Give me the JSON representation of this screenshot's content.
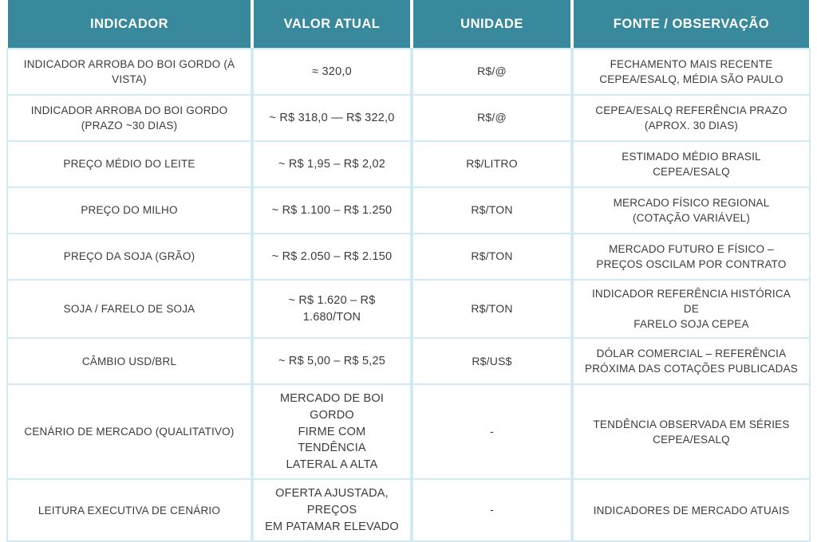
{
  "colors": {
    "header_bg": "#38899b",
    "header_text": "#ffffff",
    "grid_line": "#d2eaf5",
    "body_text": "#3b3b3b",
    "page_bg": "#ffffff"
  },
  "chart_data": {
    "type": "table",
    "columns": [
      "INDICADOR",
      "VALOR ATUAL",
      "UNIDADE",
      "FONTE / OBSERVAÇÃO"
    ],
    "rows": [
      [
        "INDICADOR ARROBA DO BOI GORDO (À VISTA)",
        "≈ 320,0",
        "R$/@",
        "FECHAMENTO MAIS RECENTE\nCEPEA/ESALQ, MÉDIA SÃO PAULO"
      ],
      [
        "INDICADOR ARROBA DO BOI GORDO (PRAZO ~30 DIAS)",
        "~ R$ 318,0 — R$ 322,0",
        "R$/@",
        "CEPEA/ESALQ REFERÊNCIA PRAZO\n(APROX. 30 DIAS)"
      ],
      [
        "PREÇO MÉDIO DO LEITE",
        "~ R$ 1,95 – R$ 2,02",
        "R$/LITRO",
        "ESTIMADO MÉDIO BRASIL\nCEPEA/ESALQ"
      ],
      [
        "PREÇO DO MILHO",
        "~ R$ 1.100 – R$ 1.250",
        "R$/TON",
        "MERCADO FÍSICO REGIONAL\n(COTAÇÃO VARIÁVEL)"
      ],
      [
        "PREÇO DA SOJA (GRÃO)",
        "~ R$ 2.050 – R$ 2.150",
        "R$/TON",
        "MERCADO FUTURO E FÍSICO –\nPREÇOS OSCILAM POR CONTRATO"
      ],
      [
        "SOJA / FARELO DE SOJA",
        "~ R$ 1.620 – R$ 1.680/TON",
        "R$/TON",
        "INDICADOR REFERÊNCIA HISTÓRICA DE\nFARELO SOJA CEPEA"
      ],
      [
        "CÂMBIO USD/BRL",
        "~ R$ 5,00 – R$ 5,25",
        "R$/US$",
        "DÓLAR COMERCIAL – REFERÊNCIA\nPRÓXIMA DAS COTAÇÕES PUBLICADAS"
      ],
      [
        "CENÁRIO DE MERCADO (QUALITATIVO)",
        "MERCADO DE BOI GORDO\nFIRME COM TENDÊNCIA\nLATERAL A ALTA",
        "-",
        "TENDÊNCIA OBSERVADA EM SÉRIES\nCEPEA/ESALQ"
      ],
      [
        "LEITURA EXECUTIVA DE CENÁRIO",
        "OFERTA AJUSTADA,\nPREÇOS\nEM PATAMAR ELEVADO",
        "-",
        "INDICADORES DE MERCADO ATUAIS"
      ]
    ]
  }
}
